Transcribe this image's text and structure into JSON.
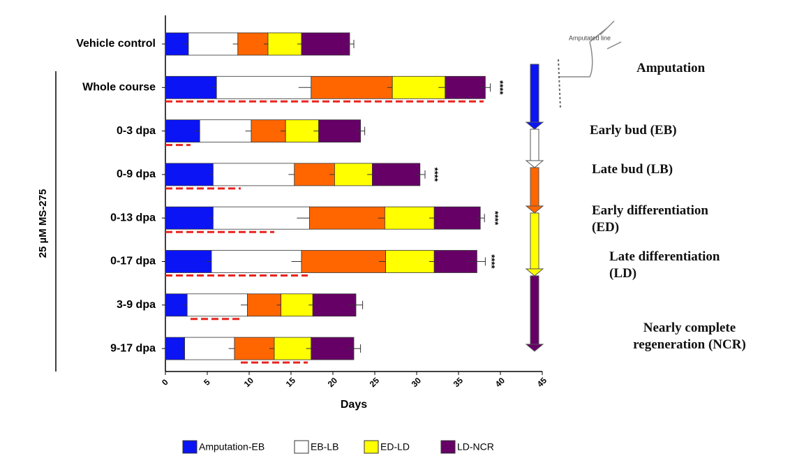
{
  "chart_data": {
    "type": "stacked-barh",
    "categories": [
      "Vehicle control",
      "Whole course",
      "0-3 dpa",
      "0-9 dpa",
      "0-13 dpa",
      "0-17 dpa",
      "3-9 dpa",
      "9-17 dpa"
    ],
    "group_label": "25 µM MS-275",
    "series": [
      {
        "name": "Amputation-EB",
        "color": "#0a14f5",
        "values": [
          2.75,
          6.1,
          4.1,
          5.7,
          5.7,
          5.5,
          2.6,
          2.3
        ],
        "errors": [
          0.5,
          0.5,
          0.6,
          0.4,
          0.5,
          0.6,
          0.4,
          0.4
        ]
      },
      {
        "name": "EB-LB",
        "color": "#ffffff",
        "values": [
          5.9,
          11.3,
          6.15,
          9.7,
          11.5,
          10.75,
          7.2,
          5.95
        ],
        "errors": [
          0.6,
          1.5,
          0.7,
          0.7,
          1.5,
          1.2,
          0.8,
          0.7
        ]
      },
      {
        "color": "#ff6600",
        "values": [
          3.6,
          9.7,
          4.1,
          4.8,
          9.0,
          10.05,
          4.0,
          4.75
        ],
        "errors": [
          0.5,
          0.6,
          0.6,
          0.6,
          0.8,
          0.8,
          0.5,
          0.6
        ]
      },
      {
        "name": "ED-LD",
        "color": "#ffff00",
        "values": [
          4.0,
          6.3,
          3.95,
          4.5,
          5.9,
          5.8,
          3.8,
          4.4
        ],
        "errors": [
          0.5,
          0.8,
          0.6,
          0.6,
          0.6,
          0.6,
          0.5,
          0.6
        ]
      },
      {
        "name": "LD-NCR",
        "color": "#660066",
        "values": [
          5.75,
          4.8,
          5.0,
          5.7,
          5.5,
          5.1,
          5.15,
          5.1
        ],
        "errors": [
          0.5,
          0.6,
          0.5,
          0.6,
          0.5,
          1.0,
          0.8,
          0.8
        ]
      }
    ],
    "treatment_windows": {
      "color": "#e8231e",
      "starts": [
        null,
        0,
        0,
        0,
        0,
        0,
        3,
        9
      ],
      "ends": [
        null,
        38,
        3,
        9,
        13,
        17,
        9,
        17
      ]
    },
    "significance": [
      null,
      "****",
      null,
      "****",
      "****",
      "****",
      null,
      null
    ],
    "xlabel": "Days",
    "xlim": [
      0,
      45
    ],
    "xticks": [
      0,
      5,
      10,
      15,
      20,
      25,
      30,
      35,
      40,
      45
    ]
  },
  "stage_diagram": {
    "line_label": "Amputated line",
    "stages": [
      {
        "label": "Amputation",
        "color": "#0a14f5"
      },
      {
        "label": "Early bud (EB)",
        "color": "#ffffff"
      },
      {
        "label": "Late bud (LB)",
        "color": "#ff6600"
      },
      {
        "label": "Early differentiation (ED)",
        "color": "#ffff00"
      },
      {
        "label": "Late differentiation (LD)",
        "color": "#660066"
      },
      {
        "label": "Nearly complete regeneration (NCR)",
        "color": "#660066"
      }
    ]
  }
}
